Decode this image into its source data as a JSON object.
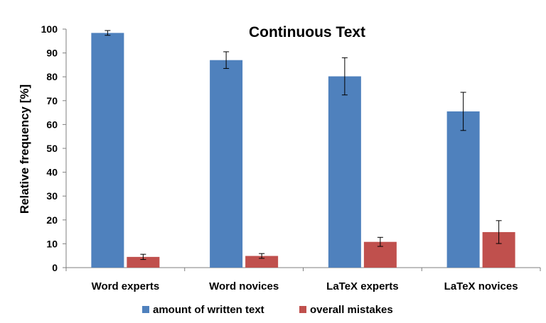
{
  "chart_data": {
    "type": "bar",
    "title": "Continuous Text",
    "xlabel": "",
    "ylabel": "Relative frequency [%]",
    "ylim": [
      0,
      100
    ],
    "yticks": [
      0,
      10,
      20,
      30,
      40,
      50,
      60,
      70,
      80,
      90,
      100
    ],
    "categories": [
      "Word experts",
      "Word novices",
      "LaTeX experts",
      "LaTeX novices"
    ],
    "series": [
      {
        "name": "amount of written text",
        "color": "#4f81bd",
        "values": [
          98.4,
          87.0,
          80.2,
          65.5
        ],
        "error": [
          1.0,
          3.5,
          7.8,
          8.0
        ]
      },
      {
        "name": "overall mistakes",
        "color": "#c0504d",
        "values": [
          4.5,
          4.9,
          10.8,
          14.9
        ],
        "error": [
          1.1,
          1.0,
          1.9,
          4.8
        ]
      }
    ],
    "legend_position": "bottom",
    "grid": false
  }
}
